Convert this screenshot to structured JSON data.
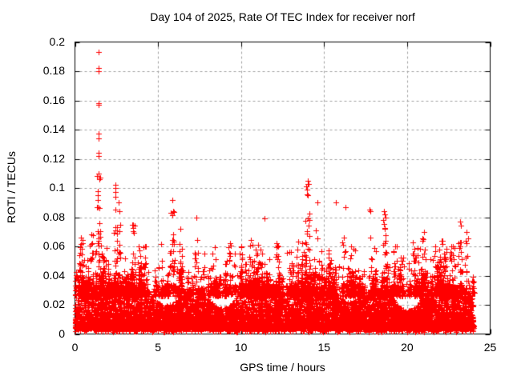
{
  "figure": {
    "background": "#ffffff",
    "text_color": "#000000",
    "border_color": "#000000"
  },
  "chart_data": {
    "type": "scatter",
    "title": "Day 104 of 2025, Rate Of TEC Index for receiver norf",
    "xlabel": "GPS time / hours",
    "ylabel": "ROTI / TECUs",
    "xlim": [
      0,
      25
    ],
    "ylim": [
      0,
      0.2
    ],
    "grid": {
      "show": true,
      "color": "#a0a0a0",
      "dash": [
        3,
        3
      ]
    },
    "legend": "none",
    "marker": {
      "shape": "plus",
      "color": "#ff0000",
      "size": 7
    },
    "xticks": [
      {
        "v": 0,
        "label": "0"
      },
      {
        "v": 5,
        "label": "5"
      },
      {
        "v": 10,
        "label": "10"
      },
      {
        "v": 15,
        "label": "15"
      },
      {
        "v": 20,
        "label": "20"
      },
      {
        "v": 25,
        "label": "25"
      }
    ],
    "yticks": [
      {
        "v": 0,
        "label": "0"
      },
      {
        "v": 0.02,
        "label": "0.02"
      },
      {
        "v": 0.04,
        "label": "0.04"
      },
      {
        "v": 0.06,
        "label": "0.06"
      },
      {
        "v": 0.08,
        "label": "0.08"
      },
      {
        "v": 0.1,
        "label": "0.1"
      },
      {
        "v": 0.12,
        "label": "0.12"
      },
      {
        "v": 0.14,
        "label": "0.14"
      },
      {
        "v": 0.16,
        "label": "0.16"
      },
      {
        "v": 0.18,
        "label": "0.18"
      },
      {
        "v": 0.2,
        "label": "0.2"
      }
    ],
    "data_model": {
      "seed": 10425,
      "x_range": [
        0,
        24
      ],
      "baseline": {
        "n": 9500,
        "y_floor": 0.004,
        "core_height": 0.026,
        "low_fraction": 0.06,
        "low_min": 0.0015,
        "low_span": 0.004
      },
      "bursts": {
        "n": 480,
        "h_min": 0.032,
        "h_span": 0.033,
        "pts_min": 3,
        "pts_span": 6,
        "x_jitter": 0.14,
        "y_base": 0.026
      },
      "clusters": [
        {
          "x": 0.35,
          "ymax": 0.066,
          "n": 22
        },
        {
          "x": 1.0,
          "ymax": 0.068,
          "n": 18
        },
        {
          "x": 1.42,
          "ymax": 0.11,
          "n": 30
        },
        {
          "x": 2.45,
          "ymax": 0.1,
          "n": 14
        },
        {
          "x": 2.62,
          "ymax": 0.09,
          "n": 18
        },
        {
          "x": 3.5,
          "ymax": 0.075,
          "n": 16
        },
        {
          "x": 4.2,
          "ymax": 0.06,
          "n": 12
        },
        {
          "x": 5.85,
          "ymax": 0.092,
          "n": 22
        },
        {
          "x": 6.35,
          "ymax": 0.072,
          "n": 14
        },
        {
          "x": 7.3,
          "ymax": 0.08,
          "n": 10
        },
        {
          "x": 8.3,
          "ymax": 0.055,
          "n": 10
        },
        {
          "x": 9.35,
          "ymax": 0.062,
          "n": 12
        },
        {
          "x": 10.0,
          "ymax": 0.06,
          "n": 12
        },
        {
          "x": 11.15,
          "ymax": 0.058,
          "n": 10
        },
        {
          "x": 12.15,
          "ymax": 0.062,
          "n": 10
        },
        {
          "x": 13.0,
          "ymax": 0.056,
          "n": 10
        },
        {
          "x": 13.7,
          "ymax": 0.062,
          "n": 10
        },
        {
          "x": 14.0,
          "ymax": 0.105,
          "n": 24
        },
        {
          "x": 14.6,
          "ymax": 0.09,
          "n": 8
        },
        {
          "x": 16.2,
          "ymax": 0.066,
          "n": 10
        },
        {
          "x": 16.65,
          "ymax": 0.06,
          "n": 8
        },
        {
          "x": 17.75,
          "ymax": 0.085,
          "n": 5
        },
        {
          "x": 18.65,
          "ymax": 0.082,
          "n": 18
        },
        {
          "x": 19.3,
          "ymax": 0.06,
          "n": 8
        },
        {
          "x": 20.35,
          "ymax": 0.055,
          "n": 10
        },
        {
          "x": 21.0,
          "ymax": 0.07,
          "n": 14
        },
        {
          "x": 21.7,
          "ymax": 0.06,
          "n": 8
        },
        {
          "x": 22.1,
          "ymax": 0.064,
          "n": 8
        },
        {
          "x": 22.65,
          "ymax": 0.06,
          "n": 10
        },
        {
          "x": 23.2,
          "ymax": 0.077,
          "n": 16
        },
        {
          "x": 23.6,
          "ymax": 0.07,
          "n": 12
        }
      ],
      "outliers": [
        [
          1.42,
          0.193
        ],
        [
          1.4,
          0.182
        ],
        [
          1.43,
          0.18
        ],
        [
          1.41,
          0.158
        ],
        [
          1.44,
          0.157
        ],
        [
          1.4,
          0.137
        ],
        [
          1.42,
          0.134
        ],
        [
          1.41,
          0.124
        ],
        [
          1.43,
          0.122
        ],
        [
          1.45,
          0.106
        ],
        [
          2.45,
          0.102
        ],
        [
          14.0,
          0.105
        ],
        [
          14.05,
          0.103
        ],
        [
          13.98,
          0.099
        ],
        [
          14.03,
          0.095
        ],
        [
          11.4,
          0.079
        ],
        [
          15.7,
          0.09
        ],
        [
          16.3,
          0.087
        ],
        [
          17.8,
          0.084
        ],
        [
          18.6,
          0.084
        ]
      ]
    }
  }
}
